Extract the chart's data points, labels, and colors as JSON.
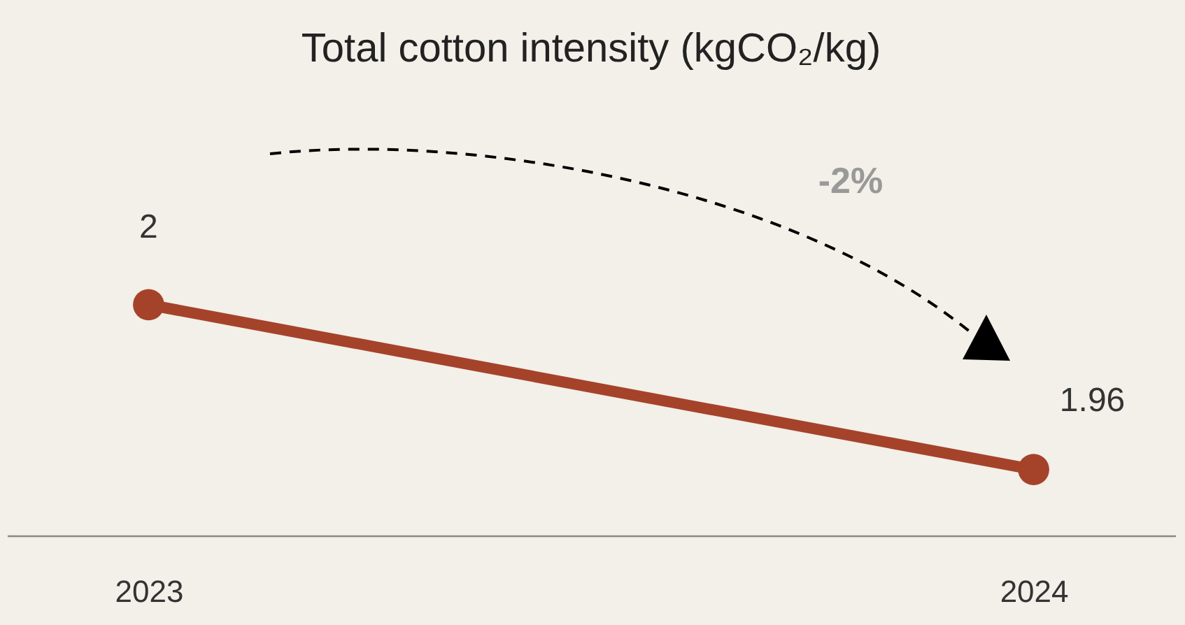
{
  "chart_data": {
    "type": "line",
    "title": "Total cotton intensity (kgCO₂/kg)",
    "categories": [
      "2023",
      "2024"
    ],
    "series": [
      {
        "color": "#a5432a",
        "values": [
          2,
          1.96
        ]
      }
    ],
    "marker": "circle",
    "data_labels": true,
    "annotations": [
      "-2%"
    ]
  }
}
